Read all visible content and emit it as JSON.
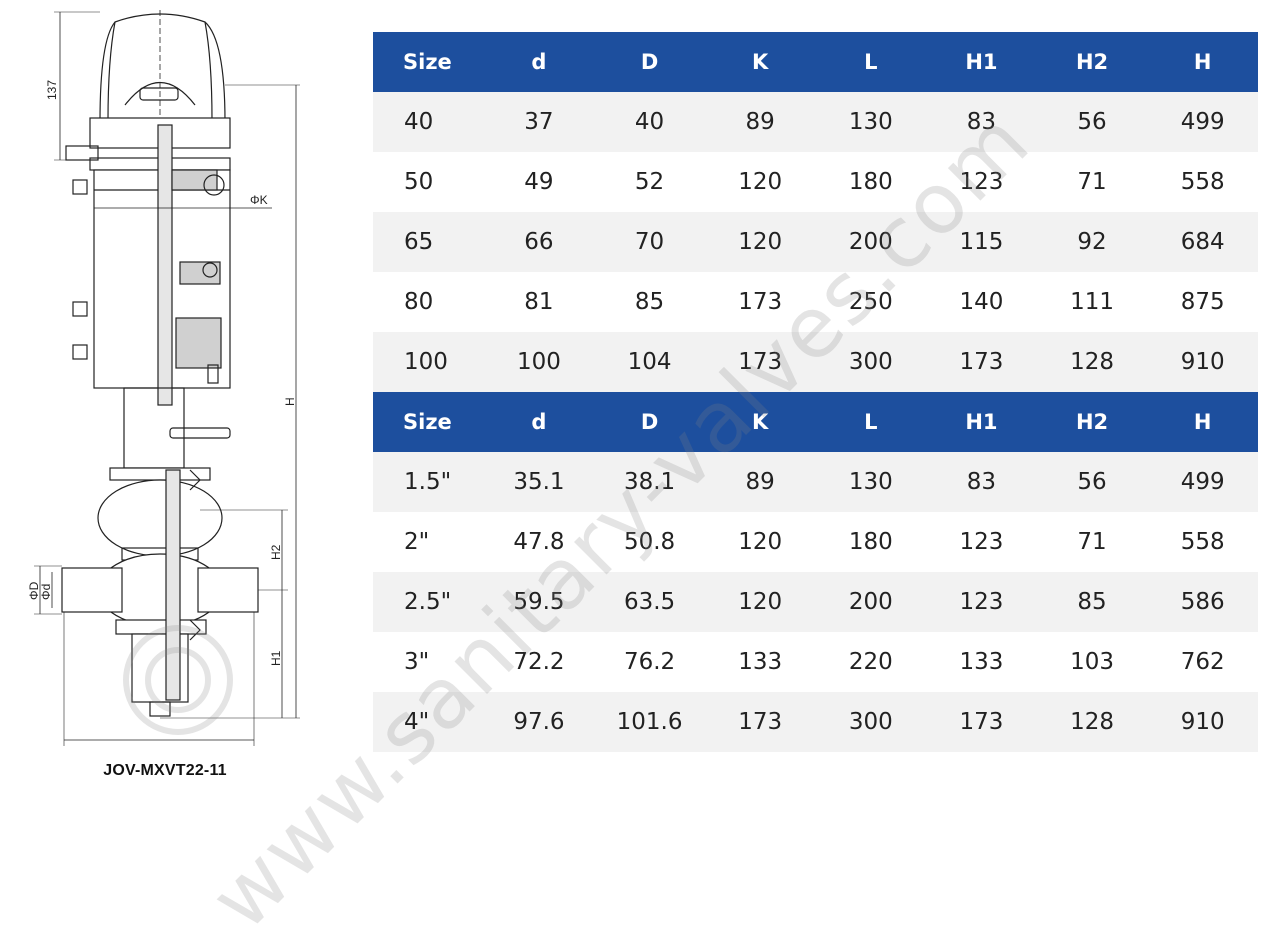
{
  "caption": "JOV-MXVT22-11",
  "watermark": "www.sanitary-valves.com",
  "drawing_labels": {
    "dim_137": "137",
    "dim_K": "ΦK",
    "dim_H": "H",
    "dim_H2": "H2",
    "dim_H1": "H1",
    "dim_D": "ΦD",
    "dim_d": "Φd"
  },
  "tables": [
    {
      "headers": [
        "Size",
        "d",
        "D",
        "K",
        "L",
        "H1",
        "H2",
        "H"
      ],
      "rows": [
        [
          "40",
          "37",
          "40",
          "89",
          "130",
          "83",
          "56",
          "499"
        ],
        [
          "50",
          "49",
          "52",
          "120",
          "180",
          "123",
          "71",
          "558"
        ],
        [
          "65",
          "66",
          "70",
          "120",
          "200",
          "115",
          "92",
          "684"
        ],
        [
          "80",
          "81",
          "85",
          "173",
          "250",
          "140",
          "111",
          "875"
        ],
        [
          "100",
          "100",
          "104",
          "173",
          "300",
          "173",
          "128",
          "910"
        ]
      ]
    },
    {
      "headers": [
        "Size",
        "d",
        "D",
        "K",
        "L",
        "H1",
        "H2",
        "H"
      ],
      "rows": [
        [
          "1.5\"",
          "35.1",
          "38.1",
          "89",
          "130",
          "83",
          "56",
          "499"
        ],
        [
          "2\"",
          "47.8",
          "50.8",
          "120",
          "180",
          "123",
          "71",
          "558"
        ],
        [
          "2.5\"",
          "59.5",
          "63.5",
          "120",
          "200",
          "123",
          "85",
          "586"
        ],
        [
          "3\"",
          "72.2",
          "76.2",
          "133",
          "220",
          "133",
          "103",
          "762"
        ],
        [
          "4\"",
          "97.6",
          "101.6",
          "173",
          "300",
          "173",
          "128",
          "910"
        ]
      ]
    }
  ],
  "colors": {
    "header_bg": "#1d4f9e",
    "row_alt_bg": "#f2f2f2"
  }
}
